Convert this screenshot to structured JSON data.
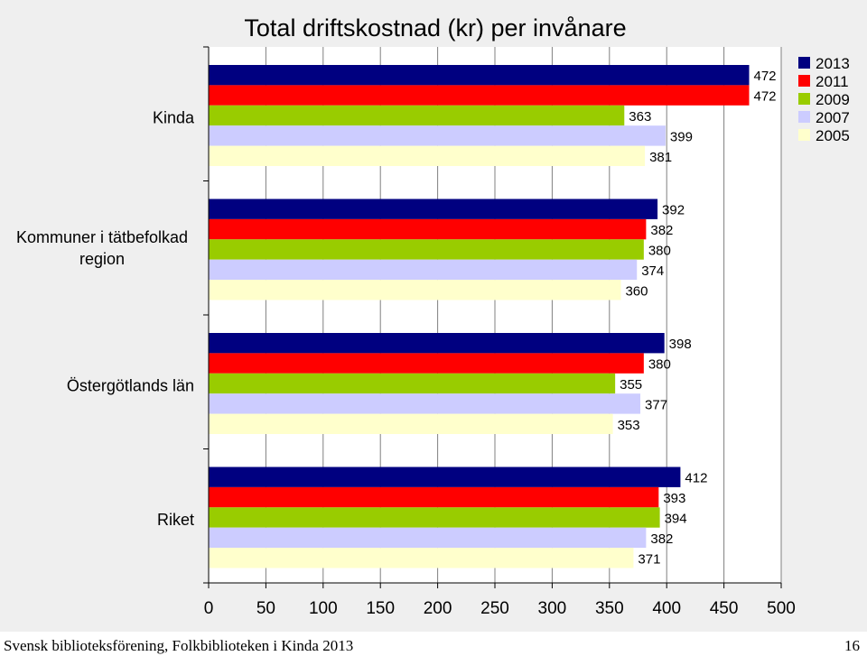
{
  "footer": {
    "left": "Svensk biblioteksförening, Folkbiblioteken i Kinda 2013",
    "page": "16"
  },
  "chart_data": {
    "type": "bar",
    "orientation": "horizontal",
    "title": "Total driftskostnad (kr) per invånare",
    "categories": [
      "Kinda",
      "Kommuner i tätbefolkad region",
      "Östergötlands län",
      "Riket"
    ],
    "series": [
      {
        "name": "2013",
        "color": "#000080",
        "values": [
          472,
          392,
          398,
          412
        ]
      },
      {
        "name": "2011",
        "color": "#ff0000",
        "values": [
          472,
          382,
          380,
          393
        ]
      },
      {
        "name": "2009",
        "color": "#99cc00",
        "values": [
          363,
          380,
          355,
          394
        ]
      },
      {
        "name": "2007",
        "color": "#ccccff",
        "values": [
          399,
          374,
          377,
          382
        ]
      },
      {
        "name": "2005",
        "color": "#ffffcc",
        "values": [
          381,
          360,
          353,
          371
        ]
      }
    ],
    "xlim": [
      0,
      500
    ],
    "xticks": [
      0,
      50,
      100,
      150,
      200,
      250,
      300,
      350,
      400,
      450,
      500
    ],
    "grid": true,
    "legend": "top-right"
  }
}
